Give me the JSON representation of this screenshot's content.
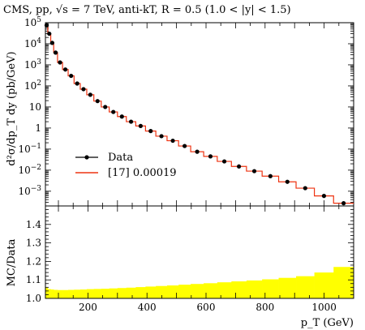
{
  "title": "CMS, pp, √s = 7 TeV, anti-kT, R = 0.5 (1.0 < |y| < 1.5)",
  "chart_data": [
    {
      "type": "line",
      "panel": "main",
      "ylabel": "d²σ/dp_T dy (pb/GeV)",
      "yscale": "log",
      "ylim": [
        0.0002,
        100000
      ],
      "xlim": [
        56,
        1100
      ],
      "yticks": [
        {
          "value": 100000,
          "label": "10^5"
        },
        {
          "value": 10000,
          "label": "10^4"
        },
        {
          "value": 1000,
          "label": "10^3"
        },
        {
          "value": 100,
          "label": "10^2"
        },
        {
          "value": 10,
          "label": "10"
        },
        {
          "value": 1,
          "label": "1"
        },
        {
          "value": 0.1,
          "label": "10^-1"
        },
        {
          "value": 0.01,
          "label": "10^-2"
        },
        {
          "value": 0.001,
          "label": "10^-3"
        }
      ],
      "legend": {
        "position": "bottom-left",
        "entries": [
          {
            "label": "Data",
            "marker": "dot-with-bar",
            "color": "#000000"
          },
          {
            "label": "[17] 0.00019",
            "marker": "line",
            "color": "#ee3311"
          }
        ]
      },
      "bins": [
        56,
        64,
        74,
        84,
        97,
        114,
        133,
        153,
        174,
        196,
        220,
        245,
        272,
        300,
        330,
        362,
        395,
        430,
        468,
        507,
        548,
        592,
        638,
        686,
        737,
        790,
        846,
        905,
        967,
        1032,
        1100
      ],
      "data": {
        "x": [
          60,
          69,
          79,
          90.5,
          105.5,
          123.5,
          143,
          163.5,
          185,
          208,
          232.5,
          258.5,
          286,
          315,
          346,
          378.5,
          412.5,
          449,
          487.5,
          527.5,
          570,
          615,
          662,
          711.5,
          763.5,
          818,
          875.5,
          936,
          999.5,
          1066
        ],
        "y": [
          75000,
          30000,
          11000,
          3800,
          1300,
          600,
          300,
          130,
          70,
          38,
          19,
          10,
          5.8,
          3.5,
          2.0,
          1.25,
          0.72,
          0.41,
          0.25,
          0.14,
          0.075,
          0.045,
          0.026,
          0.015,
          0.009,
          0.0052,
          0.0028,
          0.0014,
          0.0006,
          0.00027
        ]
      },
      "mc_values": [
        75000,
        30000,
        11000,
        3800,
        1300,
        600,
        300,
        130,
        70,
        38,
        19,
        10,
        5.8,
        3.5,
        2.0,
        1.25,
        0.72,
        0.41,
        0.25,
        0.14,
        0.075,
        0.045,
        0.026,
        0.015,
        0.009,
        0.0052,
        0.0028,
        0.0014,
        0.0006,
        0.00027
      ]
    },
    {
      "type": "area",
      "panel": "ratio",
      "ylabel": "MC/Data",
      "xlabel": "p_T (GeV)",
      "xlim": [
        56,
        1100
      ],
      "ylim": [
        1.0,
        1.5
      ],
      "xticks": [
        200,
        400,
        600,
        800,
        1000
      ],
      "yticks": [
        1.0,
        1.1,
        1.2,
        1.3,
        1.4
      ],
      "bins": [
        56,
        64,
        74,
        84,
        97,
        114,
        133,
        153,
        174,
        196,
        220,
        245,
        272,
        300,
        330,
        362,
        395,
        430,
        468,
        507,
        548,
        592,
        638,
        686,
        737,
        790,
        846,
        905,
        967,
        1032,
        1100
      ],
      "band_low": [
        1.0,
        1.0,
        1.0,
        1.0,
        1.0,
        1.0,
        1.0,
        1.0,
        1.0,
        1.0,
        1.0,
        1.0,
        1.0,
        1.0,
        1.0,
        1.0,
        1.0,
        1.0,
        1.0,
        1.0,
        1.0,
        1.0,
        1.0,
        1.0,
        1.0,
        1.0,
        1.0,
        1.0,
        1.0,
        1.0
      ],
      "band_high": [
        1.058,
        1.05,
        1.048,
        1.046,
        1.045,
        1.045,
        1.046,
        1.047,
        1.048,
        1.05,
        1.051,
        1.052,
        1.054,
        1.056,
        1.058,
        1.061,
        1.064,
        1.067,
        1.07,
        1.074,
        1.078,
        1.082,
        1.087,
        1.092,
        1.097,
        1.103,
        1.111,
        1.12,
        1.14,
        1.17
      ],
      "band_color": "#ffff00"
    }
  ]
}
